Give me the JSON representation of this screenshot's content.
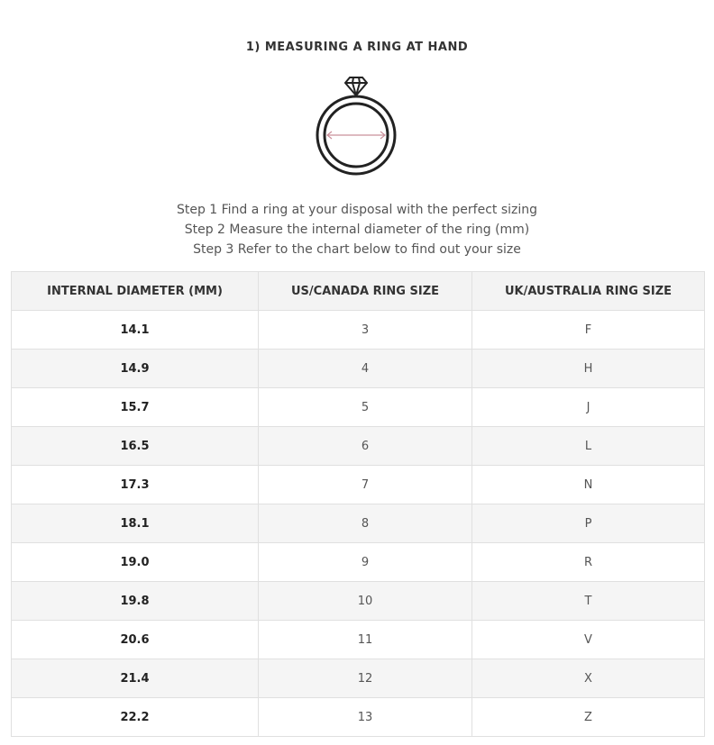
{
  "title": "1)  MEASURING A RING AT HAND",
  "steps": [
    "Step 1 Find a ring at your disposal with the perfect sizing",
    "Step 2 Measure the internal diameter of the ring (mm)",
    "Step 3 Refer to the chart below to find out your size"
  ],
  "table": {
    "headers": [
      "INTERNAL DIAMETER (MM)",
      "US/CANADA RING SIZE",
      "UK/AUSTRALIA RING SIZE"
    ],
    "rows": [
      [
        "14.1",
        "3",
        "F"
      ],
      [
        "14.9",
        "4",
        "H"
      ],
      [
        "15.7",
        "5",
        "J"
      ],
      [
        "16.5",
        "6",
        "L"
      ],
      [
        "17.3",
        "7",
        "N"
      ],
      [
        "18.1",
        "8",
        "P"
      ],
      [
        "19.0",
        "9",
        "R"
      ],
      [
        "19.8",
        "10",
        "T"
      ],
      [
        "20.6",
        "11",
        "V"
      ],
      [
        "21.4",
        "12",
        "X"
      ],
      [
        "22.2",
        "13",
        "Z"
      ]
    ]
  },
  "colors": {
    "arrow": "#c9909a"
  }
}
